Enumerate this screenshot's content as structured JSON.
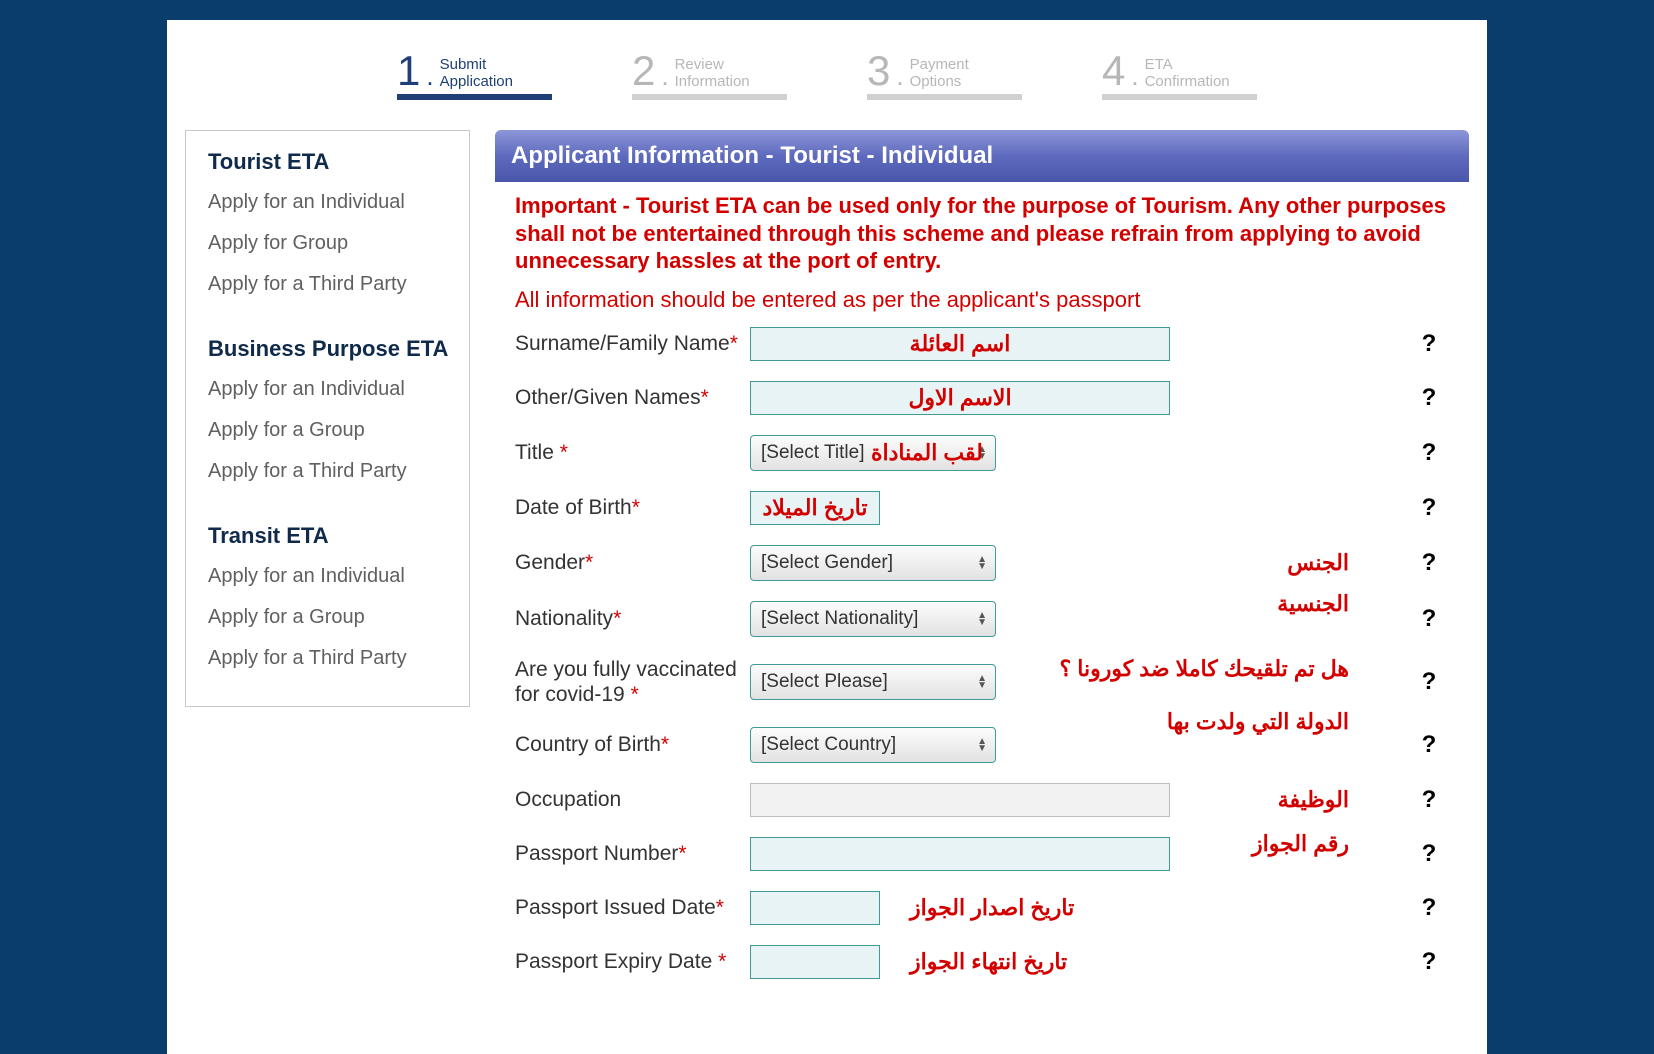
{
  "stepper": {
    "steps": [
      {
        "num": "1",
        "line1": "Submit",
        "line2": "Application",
        "active": true
      },
      {
        "num": "2",
        "line1": "Review",
        "line2": "Information",
        "active": false
      },
      {
        "num": "3",
        "line1": "Payment",
        "line2": "Options",
        "active": false
      },
      {
        "num": "4",
        "line1": "ETA",
        "line2": "Confirmation",
        "active": false
      }
    ]
  },
  "sidebar": {
    "sections": [
      {
        "title": "Tourist ETA",
        "links": [
          "Apply for an Individual",
          "Apply for Group",
          "Apply for a Third Party"
        ]
      },
      {
        "title": "Business Purpose ETA",
        "links": [
          "Apply for an Individual",
          "Apply for a Group",
          "Apply for a Third Party"
        ]
      },
      {
        "title": "Transit ETA",
        "links": [
          "Apply for an Individual",
          "Apply for a Group",
          "Apply for a Third Party"
        ]
      }
    ]
  },
  "panel": {
    "header": "Applicant Information - Tourist - Individual",
    "warning": "Important - Tourist ETA can be used only for the purpose of Tourism. Any other purposes shall not be entertained through this scheme and please refrain from applying to avoid unnecessary hassles at the port of entry.",
    "note": "All information should be entered as per the applicant's passport"
  },
  "form": {
    "surname": {
      "label": "Surname/Family Name",
      "required": true,
      "annotation": "اسم العائلة"
    },
    "given": {
      "label": "Other/Given Names",
      "required": true,
      "annotation": "الاسم الاول"
    },
    "title": {
      "label": "Title",
      "required": true,
      "placeholder": "[Select Title]",
      "annotation": "لقب المناداة"
    },
    "dob": {
      "label": "Date of Birth",
      "required": true,
      "annotation": "تاريخ الميلاد"
    },
    "gender": {
      "label": "Gender",
      "required": true,
      "placeholder": "[Select Gender]",
      "annotation": "الجنس"
    },
    "nationality": {
      "label": "Nationality",
      "required": true,
      "placeholder": "[Select Nationality]",
      "annotation": "الجنسية"
    },
    "vaccinated": {
      "label": "Are you fully vaccinated for covid-19 ",
      "required": true,
      "placeholder": "[Select Please]",
      "annotation": "هل تم تلقيحك كاملا ضد كورونا ؟"
    },
    "cob": {
      "label": "Country of Birth",
      "required": true,
      "placeholder": "[Select Country]",
      "annotation": "الدولة التي ولدت بها"
    },
    "occupation": {
      "label": "Occupation",
      "required": false,
      "annotation": "الوظيفة"
    },
    "passportNum": {
      "label": "Passport Number",
      "required": true,
      "annotation": "رقم الجواز"
    },
    "passportIssued": {
      "label": "Passport Issued Date",
      "required": true,
      "annotation": "تاريخ اصدار الجواز"
    },
    "passportExpiry": {
      "label": "Passport Expiry Date ",
      "required": true,
      "annotation": "تاريخ انتهاء الجواز"
    }
  },
  "helpGlyph": "?"
}
